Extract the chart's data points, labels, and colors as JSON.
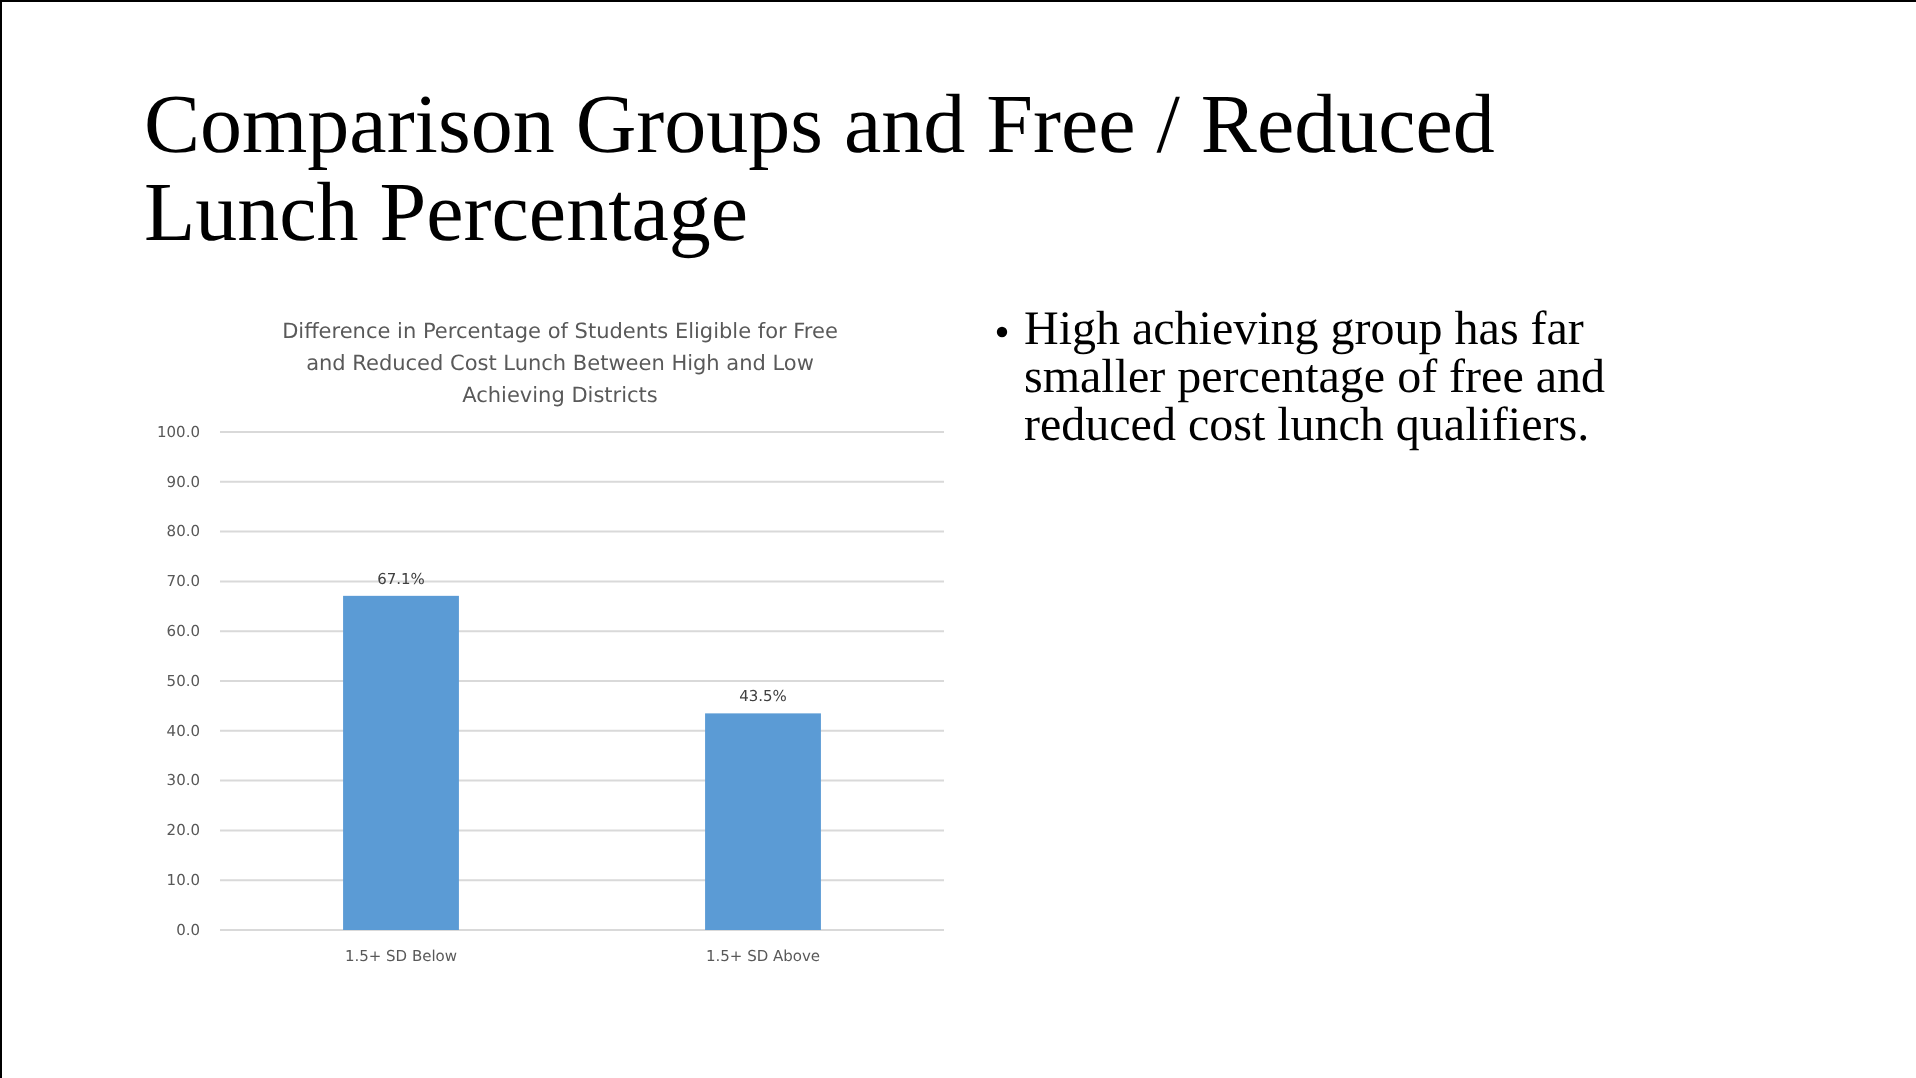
{
  "chart_data": {
    "type": "bar",
    "title": "Comparison Groups and Free / Reduced Lunch Percentage",
    "subtitle": "Difference in Percentage of Students Eligible for Free and Reduced Cost Lunch Between High and Low Achieving Districts",
    "annotations": [
      "High achieving group has far smaller percentage of free and reduced cost lunch qualifiers."
    ],
    "categories": [
      "1.5+ SD Below",
      "1.5+ SD Above"
    ],
    "values": [
      67.1,
      43.5
    ],
    "value_labels": [
      "67.1%",
      "43.5%"
    ],
    "color": "#5b9bd5",
    "ylim": [
      0,
      100
    ],
    "yticks": [
      {
        "value": 0,
        "label": "0.0"
      },
      {
        "value": 10,
        "label": "10.0"
      },
      {
        "value": 20,
        "label": "20.0"
      },
      {
        "value": 30,
        "label": "30.0"
      },
      {
        "value": 40,
        "label": "40.0"
      },
      {
        "value": 50,
        "label": "50.0"
      },
      {
        "value": 60,
        "label": "60.0"
      },
      {
        "value": 70,
        "label": "70.0"
      },
      {
        "value": 80,
        "label": "80.0"
      },
      {
        "value": 90,
        "label": "90.0"
      },
      {
        "value": 100,
        "label": "100.0"
      }
    ],
    "grid": "y"
  }
}
